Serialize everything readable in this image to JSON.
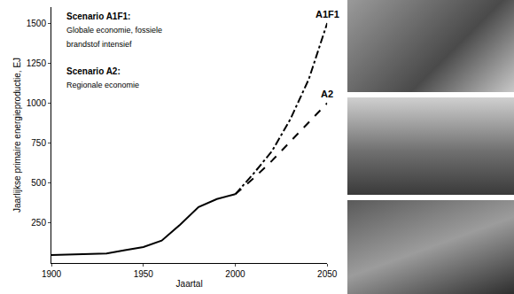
{
  "chart_data": {
    "type": "line",
    "x_label": "Jaartal",
    "y_label": "Jaarlijkse primaire energieproductie, EJ",
    "x": [
      1900,
      1910,
      1920,
      1930,
      1940,
      1950,
      1960,
      1970,
      1980,
      1990,
      2000,
      2010,
      2020,
      2030,
      2040,
      2050
    ],
    "series": [
      {
        "color": "#000000",
        "line_style": "solid",
        "values": [
          50,
          52,
          55,
          60,
          80,
          100,
          140,
          240,
          350,
          400,
          430,
          null,
          null,
          null,
          null,
          null
        ]
      },
      {
        "name": "A1F1",
        "color": "#000000",
        "line_style": "dashdot",
        "values": [
          null,
          null,
          null,
          null,
          null,
          null,
          null,
          null,
          null,
          null,
          430,
          560,
          700,
          900,
          1150,
          1500
        ]
      },
      {
        "name": "A2",
        "color": "#000000",
        "line_style": "dash",
        "values": [
          null,
          null,
          null,
          null,
          null,
          null,
          null,
          null,
          null,
          null,
          430,
          530,
          640,
          760,
          880,
          1000
        ]
      }
    ],
    "annotations": [
      {
        "text": "Scenario A1F1:",
        "bold": true
      },
      {
        "text": "Globale economie, fossiele"
      },
      {
        "text": "brandstof intensief"
      },
      {
        "text": "Scenario A2:",
        "bold": true
      },
      {
        "text": "Regionale economie"
      }
    ],
    "xlim": [
      1900,
      2050
    ],
    "xticks": [
      1900,
      1950,
      2000,
      2050
    ],
    "ylim": [
      0,
      1600
    ],
    "yticks": [
      250,
      500,
      750,
      1000,
      1250,
      1500
    ],
    "grid": false
  }
}
